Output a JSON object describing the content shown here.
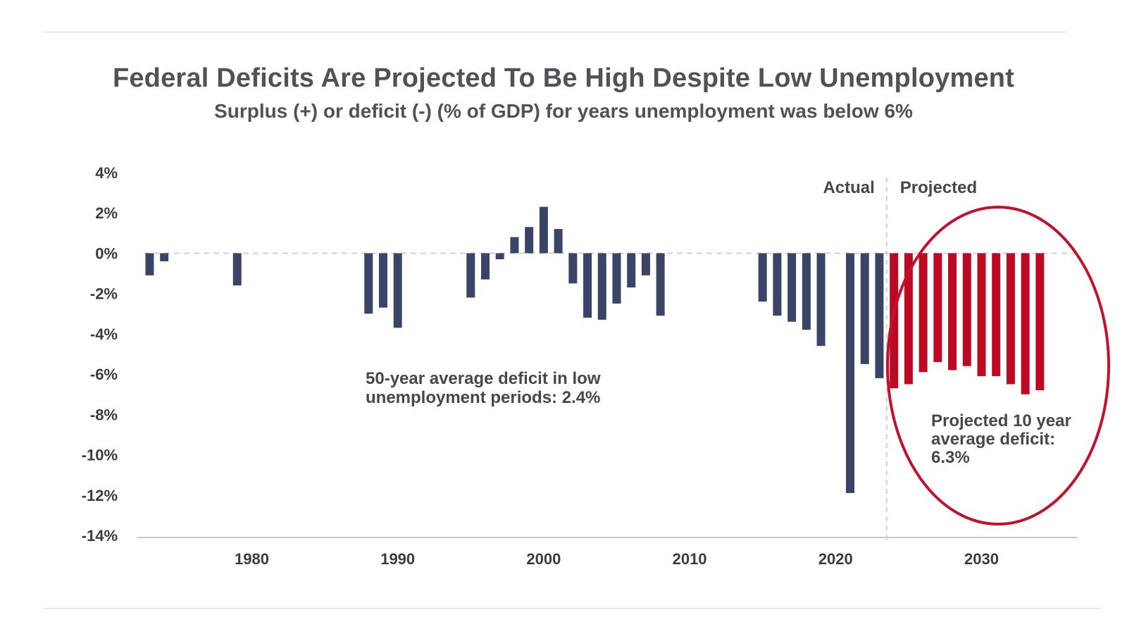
{
  "title": "Federal Deficits Are Projected To Be High Despite Low Unemployment",
  "subtitle": "Surplus (+) or deficit (-) (% of GDP) for years unemployment was below 6%",
  "chart_data": {
    "type": "bar",
    "ylim": [
      -14,
      4
    ],
    "yticks": [
      4,
      2,
      0,
      -2,
      -4,
      -6,
      -8,
      -10,
      -12,
      -14
    ],
    "ytick_labels": [
      "4%",
      "2%",
      "0%",
      "-2%",
      "-4%",
      "-6%",
      "-8%",
      "-10%",
      "-12%",
      "-14%"
    ],
    "xlim": [
      1971,
      2035
    ],
    "xticks": [
      1980,
      1990,
      2000,
      2010,
      2020,
      2030
    ],
    "xtick_labels": [
      "1980",
      "1990",
      "2000",
      "2010",
      "2020",
      "2030"
    ],
    "divider_year": 2023.5,
    "phase_labels": {
      "actual": "Actual",
      "projected": "Projected"
    },
    "colors": {
      "actual": "#3a4466",
      "projected": "#bd0a24",
      "circle": "#c0122e"
    },
    "series": [
      {
        "name": "Actual",
        "x": [
          1973,
          1974,
          1979,
          1988,
          1989,
          1990,
          1995,
          1996,
          1997,
          1998,
          1999,
          2000,
          2001,
          2002,
          2003,
          2004,
          2005,
          2006,
          2007,
          2008,
          2015,
          2016,
          2017,
          2018,
          2019,
          2021,
          2022,
          2023
        ],
        "values": [
          -1.1,
          -0.4,
          -1.6,
          -3.0,
          -2.7,
          -3.7,
          -2.2,
          -1.3,
          -0.3,
          0.8,
          1.3,
          2.3,
          1.2,
          -1.5,
          -3.2,
          -3.3,
          -2.5,
          -1.7,
          -1.1,
          -3.1,
          -2.4,
          -3.1,
          -3.4,
          -3.8,
          -4.6,
          -11.9,
          -5.5,
          -6.2
        ]
      },
      {
        "name": "Projected",
        "x": [
          2024,
          2025,
          2026,
          2027,
          2028,
          2029,
          2030,
          2031,
          2032,
          2033,
          2034
        ],
        "values": [
          -6.7,
          -6.5,
          -5.9,
          -5.4,
          -5.8,
          -5.6,
          -6.1,
          -6.1,
          -6.5,
          -7.0,
          -6.8
        ]
      }
    ],
    "annotations": {
      "historical_avg": [
        "50-year average deficit in low",
        "unemployment periods: 2.4%"
      ],
      "projected_avg": [
        "Projected 10 year",
        "average deficit:",
        "6.3%"
      ]
    }
  }
}
